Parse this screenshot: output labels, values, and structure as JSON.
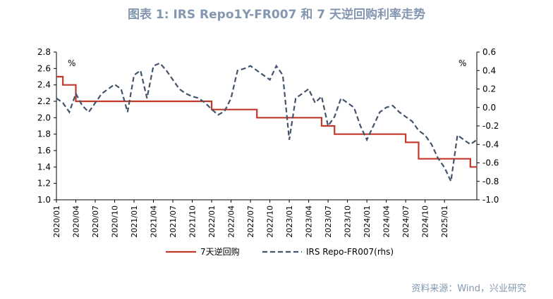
{
  "title": "图表 1:   IRS Repo1Y-FR007 和 7 天逆回购利率走势",
  "source": "资料来源：Wind，兴业研究",
  "chart_data": {
    "type": "line",
    "left_unit": "%",
    "right_unit": "%",
    "y_left": {
      "min": 1.0,
      "max": 2.8,
      "ticks": [
        "1.0",
        "1.2",
        "1.4",
        "1.6",
        "1.8",
        "2.0",
        "2.2",
        "2.4",
        "2.6",
        "2.8"
      ]
    },
    "y_right": {
      "min": -1.0,
      "max": 0.6,
      "ticks": [
        "-1.0",
        "-0.8",
        "-0.6",
        "-0.4",
        "-0.2",
        "0.0",
        "0.2",
        "0.4",
        "0.6"
      ]
    },
    "x_range": [
      "2020/01",
      "2025/06"
    ],
    "x_ticks": [
      "2020/01",
      "2020/04",
      "2020/07",
      "2020/10",
      "2021/01",
      "2021/04",
      "2021/07",
      "2021/10",
      "2022/01",
      "2022/04",
      "2022/07",
      "2022/10",
      "2023/01",
      "2023/04",
      "2023/07",
      "2023/10",
      "2024/01",
      "2024/04",
      "2024/07",
      "2024/10",
      "2025/01"
    ],
    "series": [
      {
        "name": "7天逆回购",
        "axis": "left",
        "color": "#C0392B",
        "style": "step",
        "points": [
          [
            "2020/01",
            2.5
          ],
          [
            "2020/02",
            2.4
          ],
          [
            "2020/03",
            2.4
          ],
          [
            "2020/04",
            2.2
          ],
          [
            "2022/01",
            2.1
          ],
          [
            "2022/08",
            2.0
          ],
          [
            "2023/06",
            1.9
          ],
          [
            "2023/08",
            1.8
          ],
          [
            "2024/07",
            1.7
          ],
          [
            "2024/09",
            1.5
          ],
          [
            "2025/05",
            1.4
          ],
          [
            "2025/06",
            1.4
          ]
        ]
      },
      {
        "name": "IRS Repo-FR007(rhs)",
        "axis": "right",
        "color": "#44546A",
        "style": "dashed",
        "points": [
          [
            "2020/01",
            0.1
          ],
          [
            "2020/02",
            0.05
          ],
          [
            "2020/03",
            -0.05
          ],
          [
            "2020/04",
            0.15
          ],
          [
            "2020/05",
            0.02
          ],
          [
            "2020/06",
            -0.05
          ],
          [
            "2020/07",
            0.05
          ],
          [
            "2020/08",
            0.15
          ],
          [
            "2020/09",
            0.2
          ],
          [
            "2020/10",
            0.25
          ],
          [
            "2020/11",
            0.2
          ],
          [
            "2020/12",
            -0.05
          ],
          [
            "2021/01",
            0.35
          ],
          [
            "2021/02",
            0.4
          ],
          [
            "2021/03",
            0.1
          ],
          [
            "2021/04",
            0.45
          ],
          [
            "2021/05",
            0.48
          ],
          [
            "2021/06",
            0.4
          ],
          [
            "2021/07",
            0.3
          ],
          [
            "2021/08",
            0.2
          ],
          [
            "2021/09",
            0.15
          ],
          [
            "2021/10",
            0.12
          ],
          [
            "2021/11",
            0.1
          ],
          [
            "2021/12",
            0.05
          ],
          [
            "2022/01",
            -0.02
          ],
          [
            "2022/02",
            -0.08
          ],
          [
            "2022/03",
            -0.04
          ],
          [
            "2022/04",
            0.1
          ],
          [
            "2022/05",
            0.4
          ],
          [
            "2022/06",
            0.42
          ],
          [
            "2022/07",
            0.45
          ],
          [
            "2022/08",
            0.4
          ],
          [
            "2022/09",
            0.35
          ],
          [
            "2022/10",
            0.3
          ],
          [
            "2022/11",
            0.45
          ],
          [
            "2022/12",
            0.35
          ],
          [
            "2023/01",
            -0.35
          ],
          [
            "2023/02",
            0.1
          ],
          [
            "2023/03",
            0.15
          ],
          [
            "2023/04",
            0.2
          ],
          [
            "2023/05",
            0.05
          ],
          [
            "2023/06",
            0.12
          ],
          [
            "2023/07",
            -0.2
          ],
          [
            "2023/08",
            -0.1
          ],
          [
            "2023/09",
            0.1
          ],
          [
            "2023/10",
            0.05
          ],
          [
            "2023/11",
            0.0
          ],
          [
            "2023/12",
            -0.2
          ],
          [
            "2024/01",
            -0.35
          ],
          [
            "2024/02",
            -0.2
          ],
          [
            "2024/03",
            -0.05
          ],
          [
            "2024/04",
            0.0
          ],
          [
            "2024/05",
            0.02
          ],
          [
            "2024/06",
            -0.05
          ],
          [
            "2024/07",
            -0.1
          ],
          [
            "2024/08",
            -0.15
          ],
          [
            "2024/09",
            -0.25
          ],
          [
            "2024/10",
            -0.3
          ],
          [
            "2024/11",
            -0.4
          ],
          [
            "2024/12",
            -0.55
          ],
          [
            "2025/01",
            -0.65
          ],
          [
            "2025/02",
            -0.8
          ],
          [
            "2025/03",
            -0.3
          ],
          [
            "2025/04",
            -0.35
          ],
          [
            "2025/05",
            -0.4
          ],
          [
            "2025/06",
            -0.35
          ]
        ]
      }
    ],
    "legend": {
      "placement": "bottom",
      "entries": [
        "7天逆回购",
        "IRS Repo-FR007(rhs)"
      ]
    },
    "grid": false
  }
}
